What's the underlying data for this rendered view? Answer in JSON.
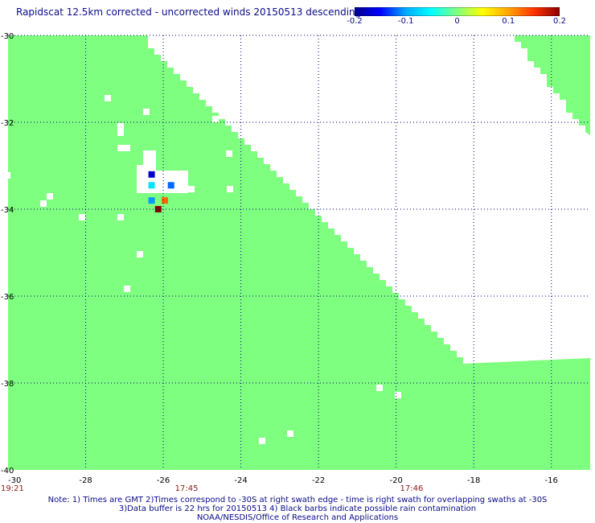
{
  "title": "Rapidscat 12.5km corrected - uncorrected winds 20150513 descending",
  "colorbar": {
    "ticks": [
      "-0.2",
      "-0.1",
      "0",
      "0.1",
      "0.2"
    ],
    "tick_values": [
      -0.2,
      -0.1,
      0,
      0.1,
      0.2
    ],
    "colors": [
      "#00008b",
      "#0000ff",
      "#00aaff",
      "#00ffff",
      "#80ff80",
      "#ffff00",
      "#ffa500",
      "#ff3300",
      "#8b0000"
    ]
  },
  "map": {
    "lon_range": [
      -30,
      -15
    ],
    "lat_range": [
      -30,
      -40
    ],
    "x_ticks": [
      "-30",
      "-28",
      "-26",
      "-24",
      "-22",
      "-20",
      "-18",
      "-16"
    ],
    "x_tick_values": [
      -30,
      -28,
      -26,
      -24,
      -22,
      -20,
      -18,
      -16
    ],
    "y_ticks": [
      "-30",
      "-32",
      "-34",
      "-36",
      "-38",
      "-40"
    ],
    "y_tick_values": [
      -30,
      -32,
      -34,
      -36,
      -38,
      -40
    ],
    "grid": true,
    "background_color": "#7fff7f",
    "no_data_color": "#ffffff",
    "times": [
      {
        "label": "19:21",
        "lon": -30
      },
      {
        "label": "17:45",
        "lon": -25.4
      },
      {
        "label": "17:46",
        "lon": -19.6
      }
    ],
    "anomalies": [
      {
        "lon": -26.3,
        "lat": -33.2,
        "color": "#0000cc"
      },
      {
        "lon": -26.3,
        "lat": -33.45,
        "color": "#00e5ff"
      },
      {
        "lon": -25.8,
        "lat": -33.45,
        "color": "#0066ff"
      },
      {
        "lon": -26.3,
        "lat": -33.8,
        "color": "#0099ff"
      },
      {
        "lon": -25.96,
        "lat": -33.8,
        "color": "#ff6600"
      },
      {
        "lon": -26.13,
        "lat": -34.0,
        "color": "#8b0000"
      }
    ]
  },
  "notes": [
    "Note: 1) Times are GMT 2)Times correspond to -30S at right swath edge - time is right swath for overlapping swaths at -30S",
    "3)Data buffer is 22 hrs for 20150513 4) Black barbs indicate possible rain contamination",
    "NOAA/NESDIS/Office of Research and Applications"
  ]
}
